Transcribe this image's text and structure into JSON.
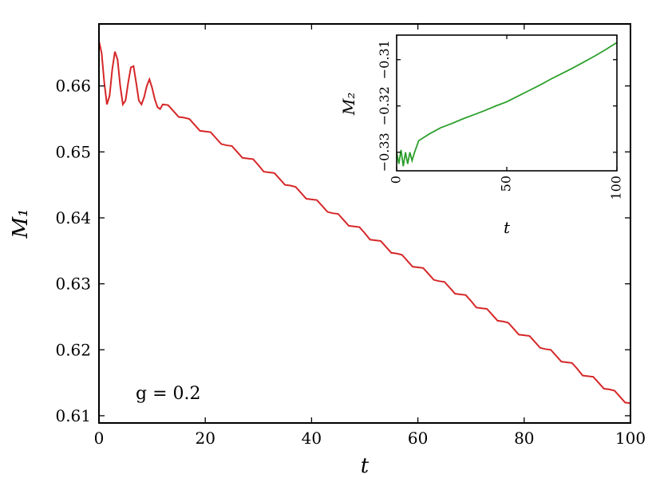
{
  "chart_data": [
    {
      "type": "line",
      "xlabel": "t",
      "ylabel": "M₁",
      "annotation": "g = 0.2",
      "xlim": [
        0,
        100
      ],
      "ylim": [
        0.6089,
        0.6694
      ],
      "xticks": [
        0,
        20,
        40,
        60,
        80,
        100
      ],
      "yticks": [
        0.61,
        0.62,
        0.63,
        0.64,
        0.65,
        0.66
      ],
      "series": [
        {
          "color": "#d62728",
          "x": [
            0,
            0.5,
            1,
            1.5,
            2,
            2.5,
            3,
            3.5,
            4,
            4.5,
            5,
            5.5,
            6,
            6.5,
            7,
            7.5,
            8,
            8.5,
            9,
            9.5,
            10,
            10.5,
            11,
            11.5,
            12,
            13,
            14,
            15,
            16,
            17,
            18,
            19,
            20,
            21,
            22,
            23,
            24,
            25,
            26,
            27,
            28,
            29,
            30,
            31,
            32,
            33,
            34,
            35,
            36,
            37,
            38,
            39,
            40,
            41,
            42,
            43,
            44,
            45,
            46,
            47,
            48,
            49,
            50,
            51,
            52,
            53,
            54,
            55,
            56,
            57,
            58,
            59,
            60,
            61,
            62,
            63,
            64,
            65,
            66,
            67,
            68,
            69,
            70,
            71,
            72,
            73,
            74,
            75,
            76,
            77,
            78,
            79,
            80,
            81,
            82,
            83,
            84,
            85,
            86,
            87,
            88,
            89,
            90,
            91,
            92,
            93,
            94,
            95,
            96,
            97,
            98,
            99,
            100
          ],
          "values": [
            0.6668,
            0.665,
            0.6605,
            0.6572,
            0.6585,
            0.6625,
            0.6652,
            0.664,
            0.66,
            0.6572,
            0.6578,
            0.6605,
            0.6628,
            0.663,
            0.6605,
            0.6578,
            0.6572,
            0.6583,
            0.66,
            0.661,
            0.6597,
            0.658,
            0.6568,
            0.6565,
            0.6572,
            0.6571,
            0.6562,
            0.6553,
            0.6552,
            0.655,
            0.6541,
            0.6532,
            0.6531,
            0.653,
            0.6521,
            0.6512,
            0.651,
            0.6509,
            0.65,
            0.6491,
            0.649,
            0.6489,
            0.648,
            0.647,
            0.6469,
            0.6468,
            0.6459,
            0.645,
            0.6449,
            0.6447,
            0.6438,
            0.6429,
            0.6428,
            0.6427,
            0.6418,
            0.6409,
            0.6407,
            0.6406,
            0.6397,
            0.6388,
            0.6387,
            0.6386,
            0.6377,
            0.6367,
            0.6366,
            0.6365,
            0.6356,
            0.6347,
            0.6346,
            0.6344,
            0.6335,
            0.6326,
            0.6325,
            0.6324,
            0.6315,
            0.6306,
            0.6304,
            0.6303,
            0.6294,
            0.6285,
            0.6284,
            0.6283,
            0.6274,
            0.6264,
            0.6263,
            0.6262,
            0.6253,
            0.6244,
            0.6243,
            0.6241,
            0.6232,
            0.6223,
            0.6222,
            0.6221,
            0.6212,
            0.6203,
            0.6201,
            0.62,
            0.6191,
            0.6182,
            0.6181,
            0.618,
            0.6171,
            0.6161,
            0.616,
            0.6159,
            0.615,
            0.6141,
            0.614,
            0.6138,
            0.6129,
            0.612,
            0.6119
          ]
        }
      ]
    },
    {
      "type": "line",
      "xlabel": "t",
      "ylabel": "M₂",
      "xlim": [
        0,
        100
      ],
      "ylim": [
        -0.334,
        -0.3047
      ],
      "xticks": [
        0,
        50,
        100
      ],
      "yticks": [
        {
          "value": -0.33,
          "label": "−0.33"
        },
        {
          "value": -0.32,
          "label": "−0.32"
        },
        {
          "value": -0.31,
          "label": "−0.31"
        }
      ],
      "series": [
        {
          "color": "#2ca02c",
          "x": [
            0,
            1,
            2,
            3,
            4,
            5,
            6,
            7,
            8,
            10,
            15,
            20,
            25,
            30,
            35,
            40,
            45,
            50,
            55,
            60,
            65,
            70,
            75,
            80,
            85,
            90,
            95,
            100
          ],
          "values": [
            -0.33,
            -0.3325,
            -0.3295,
            -0.333,
            -0.33,
            -0.3325,
            -0.33,
            -0.3318,
            -0.3302,
            -0.3275,
            -0.326,
            -0.3247,
            -0.3238,
            -0.3228,
            -0.3219,
            -0.321,
            -0.32,
            -0.3191,
            -0.3179,
            -0.3167,
            -0.3155,
            -0.3142,
            -0.313,
            -0.3118,
            -0.3105,
            -0.3092,
            -0.3078,
            -0.3063
          ]
        }
      ]
    }
  ]
}
